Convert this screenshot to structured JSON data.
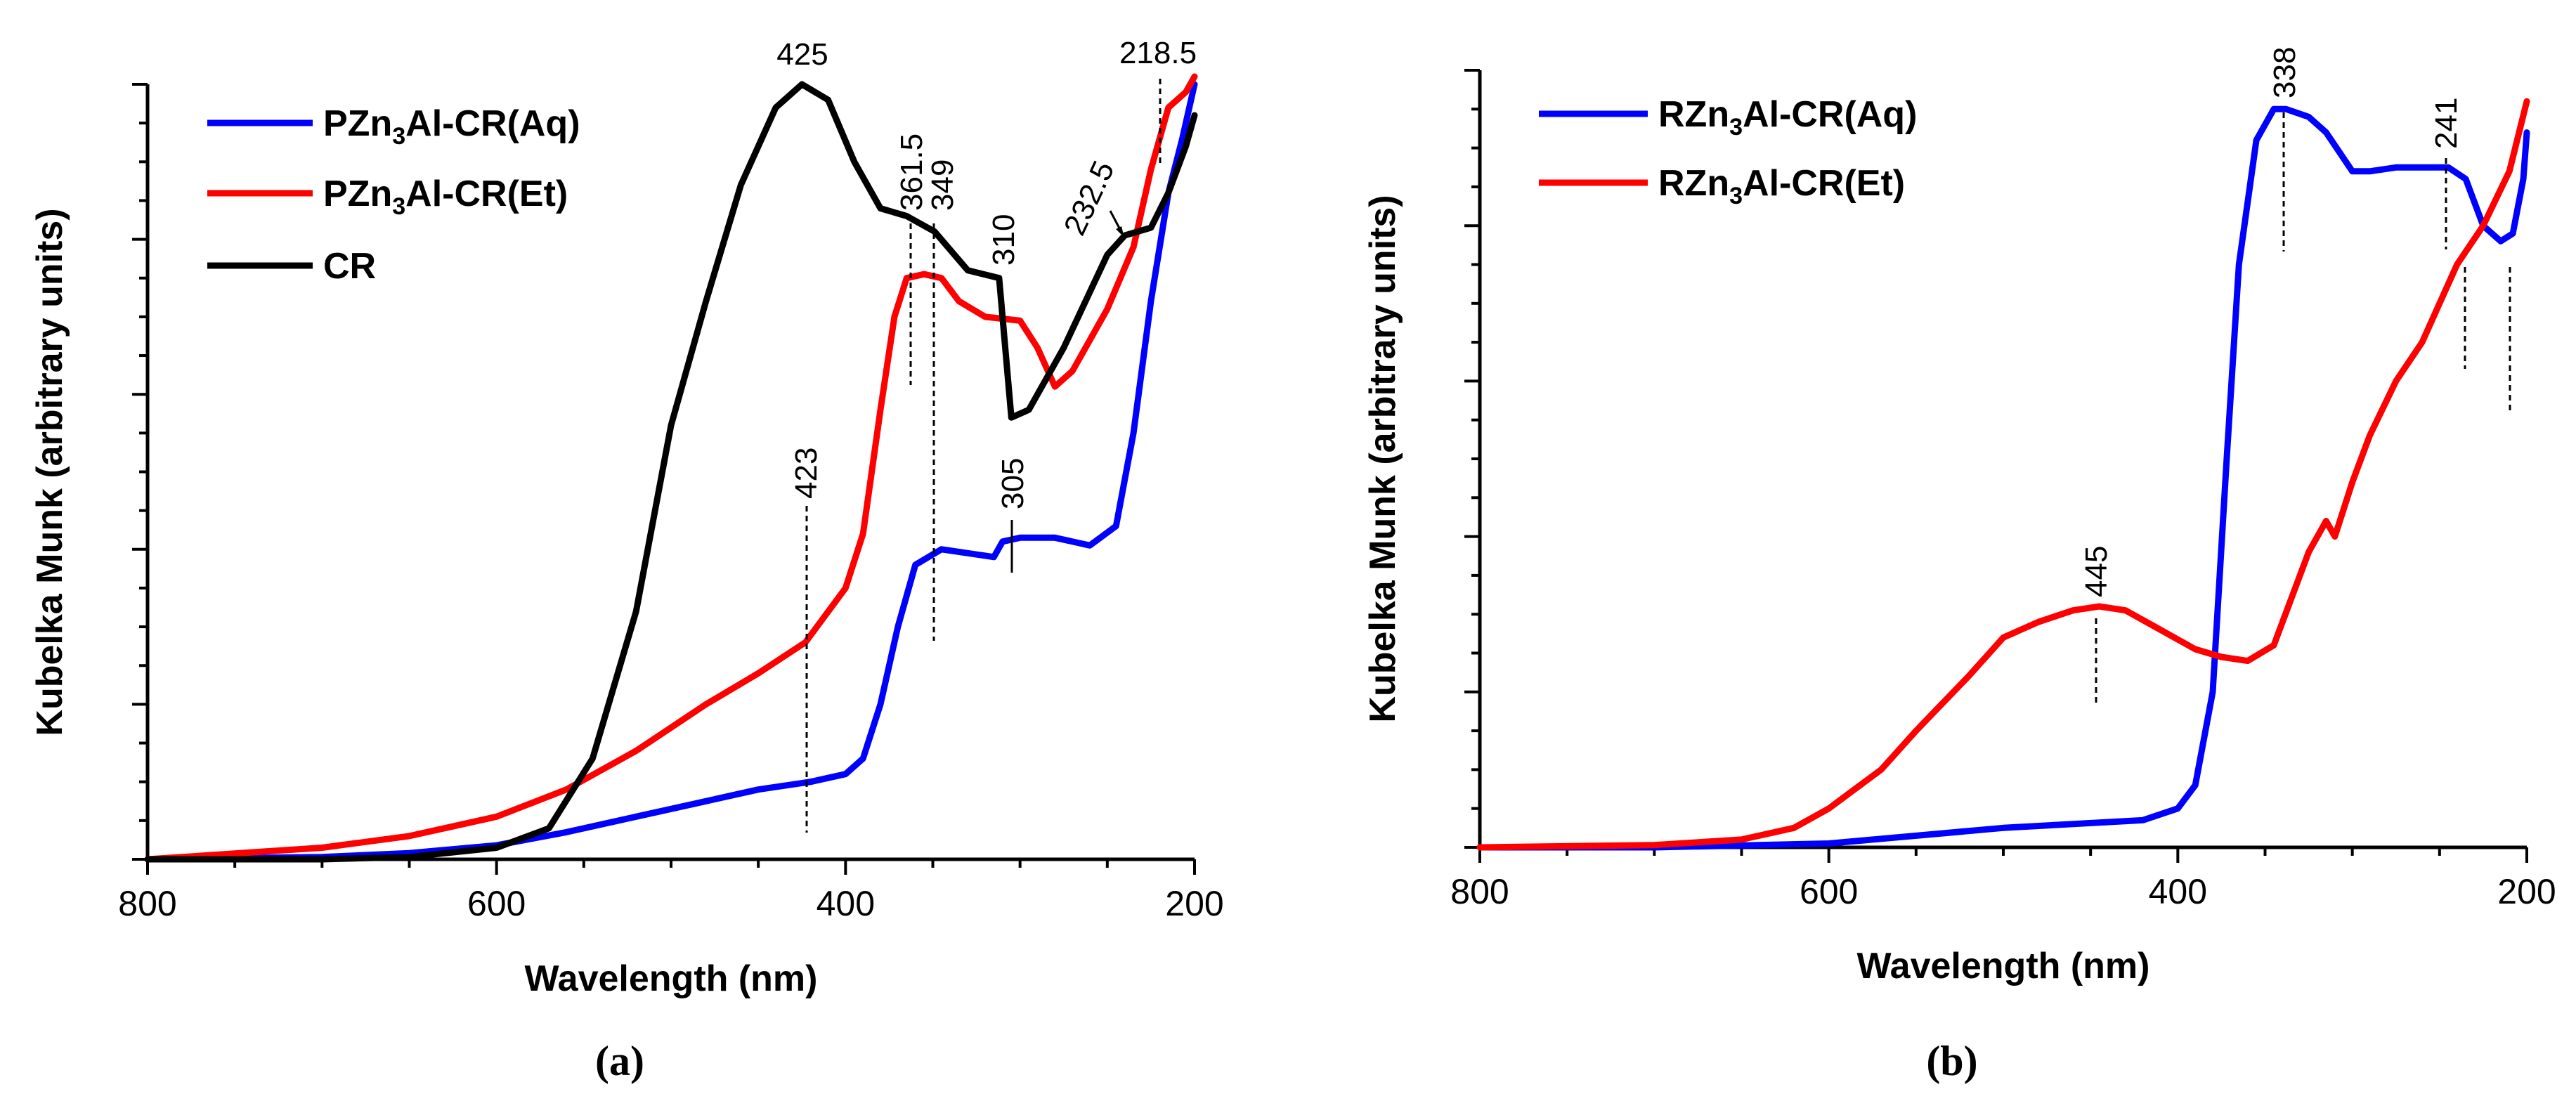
{
  "chart_data": [
    {
      "type": "line",
      "panel_label": "(a)",
      "xlabel": "Wavelength (nm)",
      "ylabel": "Kubelka Munk (arbitrary units)",
      "xlim": [
        800,
        200
      ],
      "x_reversed": true,
      "x_ticks": [
        800,
        600,
        400,
        200
      ],
      "ylim": [
        0,
        100
      ],
      "y_tick_labels_shown": false,
      "grid": false,
      "legend_position": "top-left",
      "series": [
        {
          "name": "PZn3Al-CR(Aq)",
          "legend_main": "PZn",
          "legend_sub": "3",
          "legend_rest": "Al-CR(Aq)",
          "color": "#0000ff",
          "points": [
            [
              800,
              0
            ],
            [
              700,
              0.3
            ],
            [
              650,
              0.8
            ],
            [
              600,
              1.8
            ],
            [
              560,
              3.5
            ],
            [
              520,
              5.5
            ],
            [
              480,
              7.5
            ],
            [
              450,
              9
            ],
            [
              420,
              10
            ],
            [
              400,
              11
            ],
            [
              390,
              13
            ],
            [
              380,
              20
            ],
            [
              370,
              30
            ],
            [
              360,
              38
            ],
            [
              345,
              40
            ],
            [
              330,
              39.5
            ],
            [
              315,
              39
            ],
            [
              310,
              41
            ],
            [
              300,
              41.5
            ],
            [
              280,
              41.5
            ],
            [
              260,
              40.5
            ],
            [
              245,
              43
            ],
            [
              235,
              55
            ],
            [
              225,
              72
            ],
            [
              215,
              86
            ],
            [
              207,
              93
            ],
            [
              200,
              100
            ]
          ]
        },
        {
          "name": "PZn3Al-CR(Et)",
          "legend_main": "PZn",
          "legend_sub": "3",
          "legend_rest": "Al-CR(Et)",
          "color": "#ff0000",
          "points": [
            [
              800,
              0
            ],
            [
              700,
              1.5
            ],
            [
              650,
              3
            ],
            [
              600,
              5.5
            ],
            [
              560,
              9
            ],
            [
              520,
              14
            ],
            [
              480,
              20
            ],
            [
              450,
              24
            ],
            [
              423,
              28
            ],
            [
              400,
              35
            ],
            [
              390,
              42
            ],
            [
              380,
              58
            ],
            [
              372,
              70
            ],
            [
              365,
              75
            ],
            [
              355,
              75.5
            ],
            [
              345,
              75
            ],
            [
              335,
              72
            ],
            [
              320,
              70
            ],
            [
              300,
              69.5
            ],
            [
              290,
              66
            ],
            [
              280,
              61
            ],
            [
              270,
              63
            ],
            [
              250,
              71
            ],
            [
              235,
              79
            ],
            [
              225,
              89
            ],
            [
              215,
              97
            ],
            [
              205,
              99
            ],
            [
              200,
              101
            ]
          ]
        },
        {
          "name": "CR",
          "legend_main": "CR",
          "legend_sub": "",
          "legend_rest": "",
          "color": "#000000",
          "points": [
            [
              800,
              0
            ],
            [
              700,
              0
            ],
            [
              650,
              0.3
            ],
            [
              600,
              1.5
            ],
            [
              570,
              4
            ],
            [
              545,
              13
            ],
            [
              520,
              32
            ],
            [
              500,
              56
            ],
            [
              480,
              72
            ],
            [
              460,
              87
            ],
            [
              440,
              97
            ],
            [
              425,
              100
            ],
            [
              410,
              98
            ],
            [
              395,
              90
            ],
            [
              380,
              84
            ],
            [
              365,
              83
            ],
            [
              349,
              81
            ],
            [
              330,
              76
            ],
            [
              312,
              75
            ],
            [
              305,
              57
            ],
            [
              295,
              58
            ],
            [
              275,
              66
            ],
            [
              250,
              78
            ],
            [
              240,
              80.5
            ],
            [
              232.5,
              81
            ],
            [
              225,
              81.5
            ],
            [
              215,
              86
            ],
            [
              205,
              92
            ],
            [
              200,
              96
            ]
          ]
        }
      ],
      "annotations": [
        "425",
        "361.5",
        "349",
        "310",
        "232.5",
        "218.5",
        "423",
        "305"
      ]
    },
    {
      "type": "line",
      "panel_label": "(b)",
      "xlabel": "Wavelength (nm)",
      "ylabel": "Kubelka Munk (arbitrary units)",
      "xlim": [
        800,
        200
      ],
      "x_reversed": true,
      "x_ticks": [
        800,
        600,
        400,
        200
      ],
      "ylim": [
        0,
        100
      ],
      "y_tick_labels_shown": false,
      "grid": false,
      "legend_position": "top-left",
      "series": [
        {
          "name": "RZn3Al-CR(Aq)",
          "legend_main": "RZn",
          "legend_sub": "3",
          "legend_rest": "Al-CR(Aq)",
          "color": "#0000ff",
          "points": [
            [
              800,
              0
            ],
            [
              700,
              0
            ],
            [
              600,
              0.5
            ],
            [
              500,
              2.5
            ],
            [
              420,
              3.5
            ],
            [
              400,
              5
            ],
            [
              390,
              8
            ],
            [
              380,
              20
            ],
            [
              372,
              50
            ],
            [
              365,
              75
            ],
            [
              355,
              91
            ],
            [
              345,
              95
            ],
            [
              338,
              95
            ],
            [
              325,
              94
            ],
            [
              315,
              92
            ],
            [
              300,
              87
            ],
            [
              290,
              87
            ],
            [
              275,
              87.5
            ],
            [
              260,
              87.5
            ],
            [
              245,
              87.5
            ],
            [
              235,
              86
            ],
            [
              225,
              80
            ],
            [
              215,
              78
            ],
            [
              208,
              79
            ],
            [
              202,
              86
            ],
            [
              200,
              92
            ]
          ]
        },
        {
          "name": "RZn3Al-CR(Et)",
          "legend_main": "RZn",
          "legend_sub": "3",
          "legend_rest": "Al-CR(Et)",
          "color": "#ff0000",
          "points": [
            [
              800,
              0
            ],
            [
              700,
              0.3
            ],
            [
              650,
              1
            ],
            [
              620,
              2.5
            ],
            [
              600,
              5
            ],
            [
              585,
              7.5
            ],
            [
              570,
              10
            ],
            [
              550,
              15
            ],
            [
              520,
              22
            ],
            [
              500,
              27
            ],
            [
              480,
              29
            ],
            [
              460,
              30.5
            ],
            [
              445,
              31
            ],
            [
              430,
              30.5
            ],
            [
              410,
              28
            ],
            [
              390,
              25.5
            ],
            [
              375,
              24.5
            ],
            [
              360,
              24
            ],
            [
              345,
              26
            ],
            [
              325,
              38
            ],
            [
              315,
              42
            ],
            [
              310,
              40
            ],
            [
              300,
              47
            ],
            [
              290,
              53
            ],
            [
              275,
              60
            ],
            [
              260,
              65
            ],
            [
              250,
              70
            ],
            [
              240,
              75
            ],
            [
              225,
              80
            ],
            [
              210,
              87
            ],
            [
              200,
              96
            ]
          ]
        }
      ],
      "annotations": [
        "338",
        "241",
        "445"
      ]
    }
  ]
}
